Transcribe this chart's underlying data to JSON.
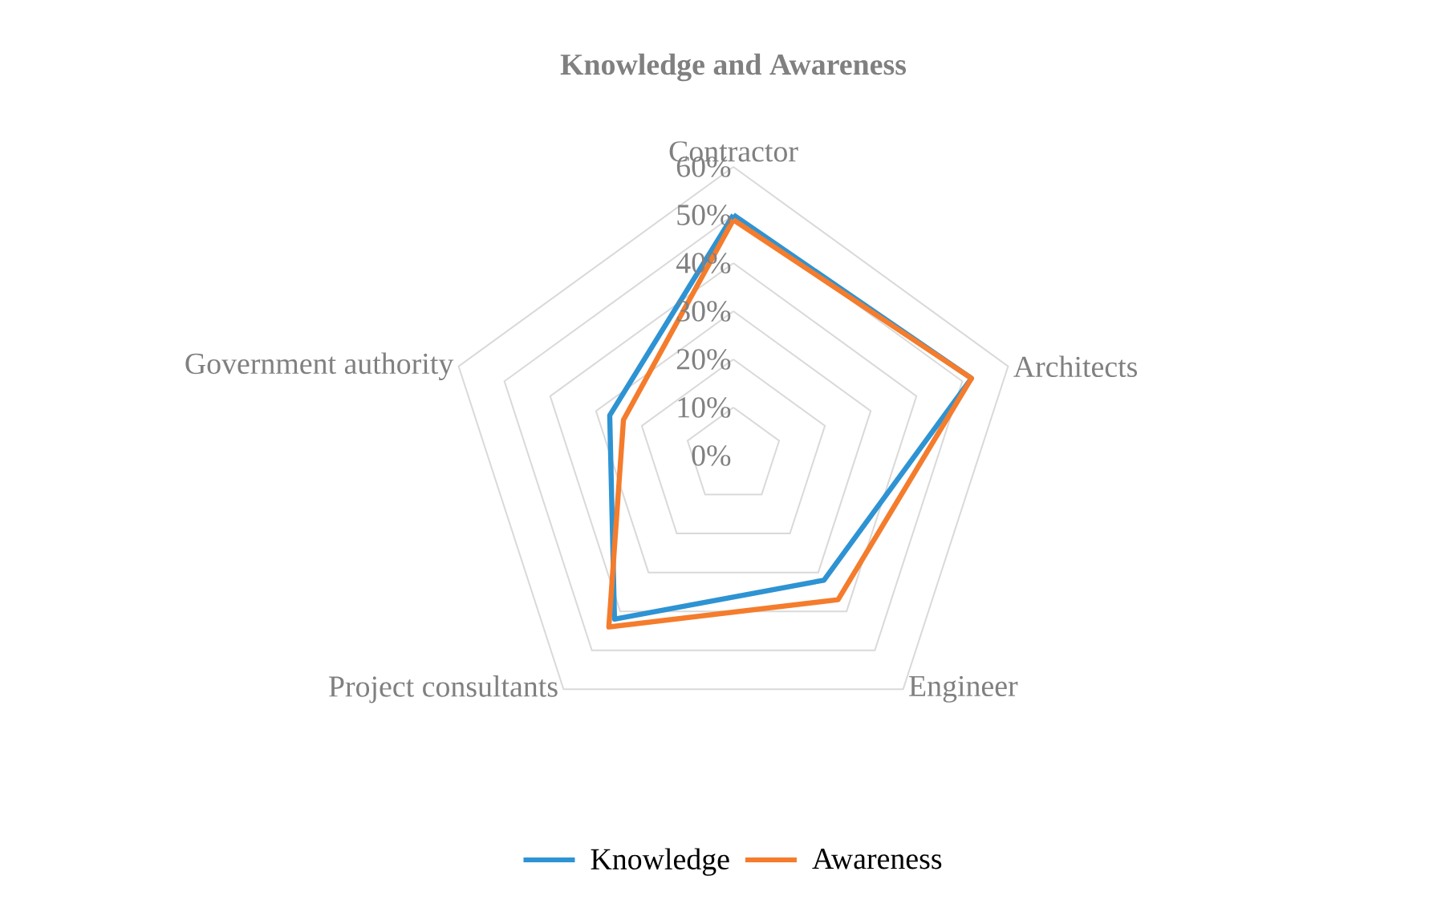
{
  "chart_data": {
    "type": "radar",
    "title": "Knowledge and Awareness",
    "categories": [
      "Contractor",
      "Architects",
      "Engineer",
      "Project consultants",
      "Government authority"
    ],
    "series": [
      {
        "name": "Knowledge",
        "color": "#2e93d3",
        "values": [
          50,
          52,
          32,
          42,
          27
        ]
      },
      {
        "name": "Awareness",
        "color": "#f47c2c",
        "values": [
          49,
          52,
          37,
          44,
          24
        ]
      }
    ],
    "ylim": [
      0,
      60
    ],
    "yticks": [
      {
        "value": 0,
        "label": "0%"
      },
      {
        "value": 10,
        "label": "10%"
      },
      {
        "value": 20,
        "label": "20%"
      },
      {
        "value": 30,
        "label": "30%"
      },
      {
        "value": 40,
        "label": "40%"
      },
      {
        "value": 50,
        "label": "50%"
      },
      {
        "value": 60,
        "label": "60%"
      }
    ],
    "grid": true,
    "legend": "bottom"
  }
}
